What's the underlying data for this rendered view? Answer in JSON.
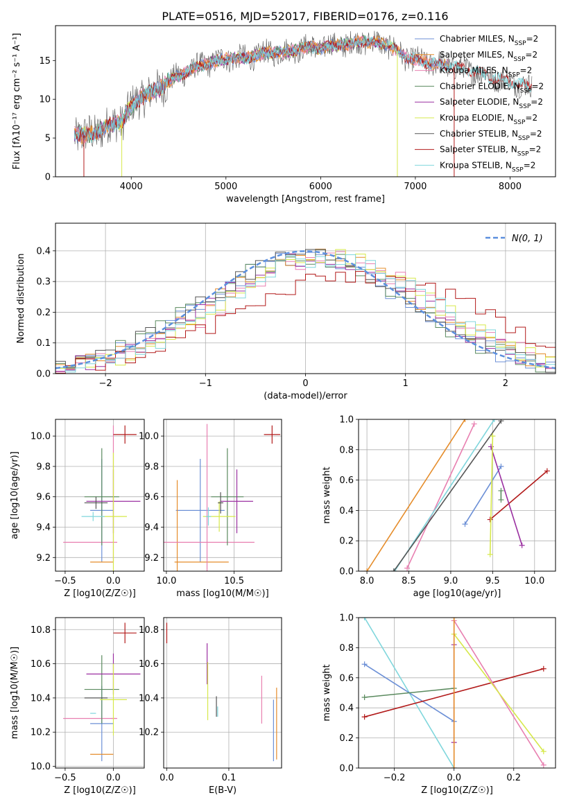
{
  "title": "PLATE=0516, MJD=52017, FIBERID=0176, z=0.116",
  "colors": {
    "chabrier_miles": "#6b8fd6",
    "salpeter_miles": "#e58c2a",
    "kroupa_miles": "#e87fb0",
    "chabrier_elodie": "#5a8a5e",
    "salpeter_elodie": "#9a2fa0",
    "kroupa_elodie": "#d6e84a",
    "chabrier_stelib": "#555555",
    "salpeter_stelib": "#b21a1a",
    "kroupa_stelib": "#7fd6dc",
    "gaussian": "#5b8fde"
  },
  "chart_data": [
    {
      "type": "line",
      "title": "PLATE=0516, MJD=52017, FIBERID=0176, z=0.116",
      "xlabel": "wavelength [Angstrom, rest frame]",
      "ylabel": "Flux [fλ10⁻¹⁷ erg cm⁻² s⁻¹ A⁻¹]",
      "xlim": [
        3200,
        8480
      ],
      "ylim": [
        0,
        19.5
      ],
      "xticks": [
        4000,
        5000,
        6000,
        7000,
        8000
      ],
      "yticks": [
        0,
        5,
        10,
        15
      ],
      "grid": false,
      "legend": "top-right",
      "series": [
        {
          "name": "Chabrier MILES, N_SSP=2",
          "color_key": "chabrier_miles"
        },
        {
          "name": "Salpeter MILES, N_SSP=2",
          "color_key": "salpeter_miles"
        },
        {
          "name": "Kroupa MILES, N_SSP=2",
          "color_key": "kroupa_miles"
        },
        {
          "name": "Chabrier ELODIE, N_SSP=2",
          "color_key": "chabrier_elodie"
        },
        {
          "name": "Salpeter ELODIE, N_SSP=2",
          "color_key": "salpeter_elodie"
        },
        {
          "name": "Kroupa ELODIE, N_SSP=2",
          "color_key": "kroupa_elodie"
        },
        {
          "name": "Chabrier STELIB, N_SSP=2",
          "color_key": "chabrier_stelib"
        },
        {
          "name": "Salpeter STELIB, N_SSP=2",
          "color_key": "salpeter_stelib"
        },
        {
          "name": "Kroupa STELIB, N_SSP=2",
          "color_key": "kroupa_stelib"
        }
      ],
      "x": [
        3400,
        3500,
        3600,
        3700,
        3800,
        3900,
        4000,
        4100,
        4200,
        4300,
        4400,
        4500,
        4600,
        4700,
        4800,
        4900,
        5000,
        5100,
        5200,
        5300,
        5400,
        5500,
        5600,
        5700,
        5800,
        5900,
        6000,
        6100,
        6200,
        6300,
        6400,
        6500,
        6600,
        6700,
        6800,
        6900,
        7000,
        7100,
        7200,
        7300,
        7400,
        7500,
        7600,
        7700,
        7800,
        7900,
        8000,
        8100,
        8200
      ],
      "y_model": [
        5.5,
        5.3,
        5.6,
        6.2,
        6.8,
        7.2,
        9.0,
        10.2,
        10.8,
        11.4,
        12.4,
        13.0,
        13.6,
        14.2,
        14.6,
        14.9,
        15.2,
        15.3,
        15.3,
        15.6,
        15.9,
        16.1,
        16.0,
        16.3,
        16.6,
        16.8,
        16.5,
        16.9,
        17.1,
        17.0,
        17.5,
        17.3,
        17.4,
        17.0,
        16.3,
        15.4,
        15.1,
        14.8,
        14.6,
        14.4,
        14.2,
        14.0,
        13.7,
        13.3,
        12.9,
        12.6,
        12.3,
        12.0,
        11.5
      ]
    },
    {
      "type": "step",
      "xlabel": "(data-model)/error",
      "ylabel": "Normed distribution",
      "xlim": [
        -2.5,
        2.5
      ],
      "ylim": [
        0,
        0.49
      ],
      "xticks": [
        -2,
        -1,
        0,
        1,
        2
      ],
      "yticks": [
        0.0,
        0.1,
        0.2,
        0.3,
        0.4
      ],
      "grid": true,
      "legend": "top-right",
      "gaussian_label": "N(0, 1)"
    },
    {
      "type": "scatter",
      "xlabel": "Z [log10(Z/Z☉)]",
      "ylabel": "age  [log10(age/yr)]",
      "xlim": [
        -0.6,
        0.32
      ],
      "ylim": [
        9.11,
        10.11
      ],
      "xticks": [
        -0.5,
        0.0
      ],
      "yticks": [
        9.2,
        9.4,
        9.6,
        9.8,
        10.0
      ],
      "points": [
        {
          "key": "chabrier_miles",
          "x": -0.12,
          "y": 9.51,
          "xerr": 0.12,
          "yerr": 0.34
        },
        {
          "key": "salpeter_miles",
          "x": -0.12,
          "y": 9.17,
          "xerr": 0.12,
          "yerr": 0.0
        },
        {
          "key": "kroupa_miles",
          "x": -0.24,
          "y": 9.3,
          "xerr": 0.28,
          "yerr": 0.0
        },
        {
          "key": "kroupa_miles",
          "x": 0.0,
          "y": 9.62,
          "xerr": 0.0,
          "yerr": 0.45
        },
        {
          "key": "chabrier_elodie",
          "x": -0.12,
          "y": 9.6,
          "xerr": 0.18,
          "yerr": 0.32
        },
        {
          "key": "salpeter_elodie",
          "x": 0.0,
          "y": 9.57,
          "xerr": 0.28,
          "yerr": 0.21
        },
        {
          "key": "kroupa_elodie",
          "x": 0.0,
          "y": 9.47,
          "xerr": 0.14,
          "yerr": 0.42
        },
        {
          "key": "chabrier_stelib",
          "x": -0.18,
          "y": 9.56,
          "xerr": 0.12,
          "yerr": 0.04
        },
        {
          "key": "salpeter_stelib",
          "x": 0.12,
          "y": 10.01,
          "xerr": 0.12,
          "yerr": 0.06
        },
        {
          "key": "kroupa_stelib",
          "x": -0.21,
          "y": 9.47,
          "xerr": 0.12,
          "yerr": 0.03
        }
      ]
    },
    {
      "type": "scatter",
      "xlabel": "mass [log10(M/M☉)]",
      "xlim": [
        9.98,
        10.85
      ],
      "ylim": [
        9.11,
        10.11
      ],
      "xticks": [
        10.0,
        10.5
      ],
      "yticks": [
        9.2,
        9.4,
        9.6,
        9.8,
        10.0
      ],
      "points": [
        {
          "key": "chabrier_miles",
          "x": 10.25,
          "y": 9.51,
          "xerr": 0.18,
          "yerr": 0.34
        },
        {
          "key": "salpeter_miles",
          "x": 10.08,
          "y": 9.17,
          "xerr": 0.0,
          "yerr": 0.54
        },
        {
          "key": "salpeter_miles",
          "x": 10.26,
          "y": 9.17,
          "xerr": 0.2,
          "yerr": 0.0
        },
        {
          "key": "kroupa_miles",
          "x": 10.3,
          "y": 9.3,
          "xerr": 0.35,
          "yerr": 0.78
        },
        {
          "key": "chabrier_elodie",
          "x": 10.45,
          "y": 9.6,
          "xerr": 0.12,
          "yerr": 0.32
        },
        {
          "key": "salpeter_elodie",
          "x": 10.52,
          "y": 9.57,
          "xerr": 0.12,
          "yerr": 0.21
        },
        {
          "key": "kroupa_elodie",
          "x": 10.39,
          "y": 9.47,
          "xerr": 0.12,
          "yerr": 0.1
        },
        {
          "key": "chabrier_stelib",
          "x": 10.4,
          "y": 9.56,
          "xerr": 0.02,
          "yerr": 0.07
        },
        {
          "key": "salpeter_stelib",
          "x": 10.78,
          "y": 10.01,
          "xerr": 0.06,
          "yerr": 0.06
        },
        {
          "key": "kroupa_stelib",
          "x": 10.31,
          "y": 9.47,
          "xerr": 0.02,
          "yerr": 0.06
        }
      ]
    },
    {
      "type": "line",
      "xlabel": "age  [log10(age/yr)]",
      "ylabel": "mass weight",
      "xlim": [
        7.9,
        10.25
      ],
      "ylim": [
        0,
        1.0
      ],
      "xticks": [
        8.0,
        8.5,
        9.0,
        9.5,
        10.0
      ],
      "yticks": [
        0.0,
        0.2,
        0.4,
        0.6,
        0.8,
        1.0
      ],
      "grid": true,
      "lines": [
        {
          "key": "salpeter_miles",
          "x": [
            8.0,
            9.17
          ],
          "y": [
            0.0,
            1.0
          ]
        },
        {
          "key": "kroupa_miles",
          "x": [
            8.48,
            9.28
          ],
          "y": [
            0.02,
            0.97
          ]
        },
        {
          "key": "kroupa_stelib",
          "x": [
            8.33,
            9.52
          ],
          "y": [
            0.0,
            1.0
          ]
        },
        {
          "key": "chabrier_stelib",
          "x": [
            8.32,
            9.6
          ],
          "y": [
            0.0,
            0.99
          ]
        },
        {
          "key": "chabrier_miles",
          "x": [
            9.17,
            9.6
          ],
          "y": [
            0.31,
            0.69
          ]
        },
        {
          "key": "salpeter_stelib",
          "x": [
            9.47,
            10.15
          ],
          "y": [
            0.34,
            0.66
          ]
        },
        {
          "key": "salpeter_elodie",
          "x": [
            9.48,
            9.85
          ],
          "y": [
            0.82,
            0.17
          ]
        },
        {
          "key": "kroupa_elodie",
          "x": [
            9.47,
            9.5
          ],
          "y": [
            0.11,
            0.89
          ]
        },
        {
          "key": "chabrier_elodie",
          "x": [
            9.6,
            9.6
          ],
          "y": [
            0.47,
            0.53
          ]
        }
      ]
    },
    {
      "type": "scatter",
      "xlabel": "Z [log10(Z/Z☉)]",
      "ylabel": "mass [log10(M/M☉)]",
      "xlim": [
        -0.6,
        0.32
      ],
      "ylim": [
        9.99,
        10.87
      ],
      "xticks": [
        -0.5,
        0.0
      ],
      "yticks": [
        10.0,
        10.2,
        10.4,
        10.6,
        10.8
      ],
      "points": [
        {
          "key": "chabrier_miles",
          "x": -0.12,
          "y": 10.25,
          "xerr": 0.12,
          "yerr": 0.22
        },
        {
          "key": "salpeter_miles",
          "x": -0.12,
          "y": 10.07,
          "xerr": 0.12,
          "yerr": 0.0
        },
        {
          "key": "kroupa_miles",
          "x": -0.24,
          "y": 10.28,
          "xerr": 0.28,
          "yerr": 0.0
        },
        {
          "key": "kroupa_miles",
          "x": 0.0,
          "y": 10.28,
          "xerr": 0.0,
          "yerr": 0.0
        },
        {
          "key": "chabrier_elodie",
          "x": -0.12,
          "y": 10.45,
          "xerr": 0.18,
          "yerr": 0.2
        },
        {
          "key": "salpeter_elodie",
          "x": 0.0,
          "y": 10.54,
          "xerr": 0.28,
          "yerr": 0.12
        },
        {
          "key": "kroupa_elodie",
          "x": 0.0,
          "y": 10.39,
          "xerr": 0.14,
          "yerr": 0.21
        },
        {
          "key": "chabrier_stelib",
          "x": -0.18,
          "y": 10.4,
          "xerr": 0.12,
          "yerr": 0.0
        },
        {
          "key": "salpeter_stelib",
          "x": 0.12,
          "y": 10.78,
          "xerr": 0.12,
          "yerr": 0.06
        },
        {
          "key": "kroupa_stelib",
          "x": -0.21,
          "y": 10.31,
          "xerr": 0.03,
          "yerr": 0.0
        }
      ]
    },
    {
      "type": "scatter",
      "xlabel": "E(B-V)",
      "xlim": [
        -0.005,
        0.185
      ],
      "ylim": [
        9.99,
        10.87
      ],
      "xticks": [
        0.0,
        0.1
      ],
      "yticks": [
        10.2,
        10.4,
        10.6,
        10.8
      ],
      "points": [
        {
          "key": "salpeter_stelib",
          "x": 0.0,
          "y": 10.78,
          "xerr": 0.0,
          "yerr": 0.06
        },
        {
          "key": "salpeter_elodie",
          "x": 0.065,
          "y": 10.6,
          "xerr": 0.0,
          "yerr": 0.12
        },
        {
          "key": "kroupa_elodie",
          "x": 0.066,
          "y": 10.44,
          "xerr": 0.0,
          "yerr": 0.17
        },
        {
          "key": "chabrier_stelib",
          "x": 0.08,
          "y": 10.35,
          "xerr": 0.0,
          "yerr": 0.06
        },
        {
          "key": "kroupa_stelib",
          "x": 0.082,
          "y": 10.32,
          "xerr": 0.0,
          "yerr": 0.03
        },
        {
          "key": "kroupa_miles",
          "x": 0.153,
          "y": 10.39,
          "xerr": 0.0,
          "yerr": 0.14
        },
        {
          "key": "chabrier_miles",
          "x": 0.172,
          "y": 10.21,
          "xerr": 0.0,
          "yerr": 0.18
        },
        {
          "key": "salpeter_miles",
          "x": 0.177,
          "y": 10.25,
          "xerr": 0.0,
          "yerr": 0.21
        }
      ]
    },
    {
      "type": "line",
      "xlabel": "Z [log10(Z/Z☉)]",
      "ylabel": "mass weight",
      "xlim": [
        -0.32,
        0.34
      ],
      "ylim": [
        0,
        1.0
      ],
      "xticks": [
        -0.2,
        0.0,
        0.2
      ],
      "yticks": [
        0.0,
        0.2,
        0.4,
        0.6,
        0.8,
        1.0
      ],
      "grid": true,
      "lines": [
        {
          "key": "kroupa_stelib",
          "x": [
            -0.3,
            0.0
          ],
          "y": [
            1.0,
            0.0
          ]
        },
        {
          "key": "chabrier_miles",
          "x": [
            -0.3,
            0.0
          ],
          "y": [
            0.69,
            0.31
          ]
        },
        {
          "key": "chabrier_elodie",
          "x": [
            -0.3,
            0.0
          ],
          "y": [
            0.47,
            0.53
          ]
        },
        {
          "key": "salpeter_stelib",
          "x": [
            -0.3,
            0.3
          ],
          "y": [
            0.34,
            0.66
          ]
        },
        {
          "key": "kroupa_miles",
          "x": [
            0.0,
            0.3
          ],
          "y": [
            0.98,
            0.02
          ]
        },
        {
          "key": "kroupa_elodie",
          "x": [
            0.0,
            0.3
          ],
          "y": [
            0.89,
            0.11
          ]
        },
        {
          "key": "salpeter_elodie",
          "x": [
            0.0,
            0.0
          ],
          "y": [
            0.17,
            0.82
          ]
        },
        {
          "key": "salpeter_miles",
          "x": [
            0.0,
            0.0
          ],
          "y": [
            0.0,
            1.0
          ]
        }
      ]
    }
  ]
}
